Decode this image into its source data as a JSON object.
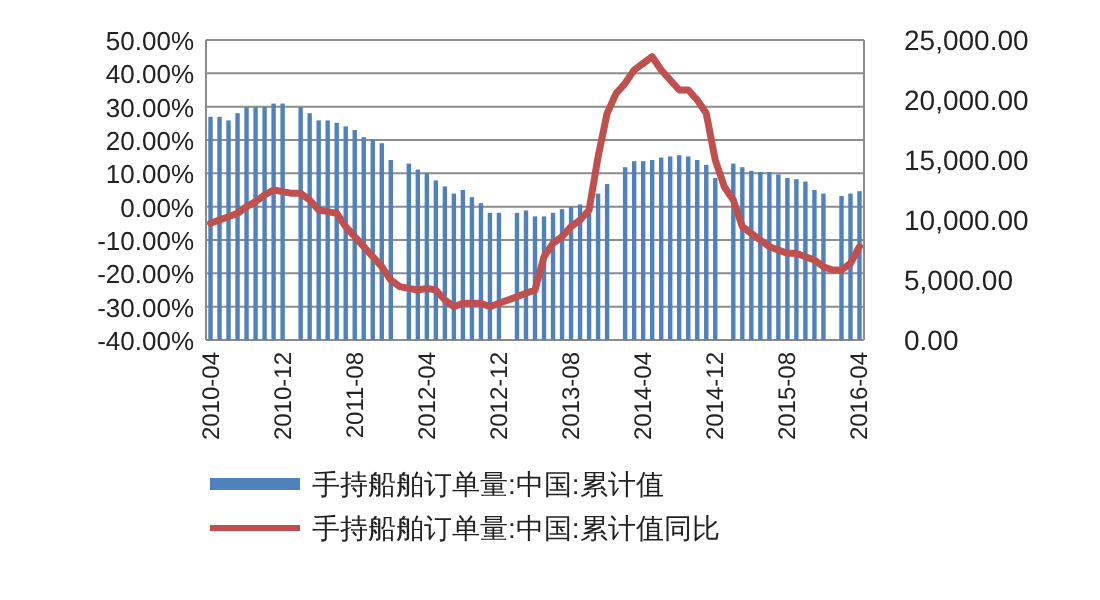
{
  "chart_data": {
    "type": "bar",
    "categories": [
      "2010-04",
      null,
      null,
      null,
      null,
      null,
      null,
      null,
      "2010-12",
      null,
      null,
      null,
      null,
      null,
      null,
      null,
      "2011-08",
      null,
      null,
      null,
      null,
      null,
      null,
      null,
      "2012-04",
      null,
      null,
      null,
      null,
      null,
      null,
      null,
      "2012-12",
      null,
      null,
      null,
      null,
      null,
      null,
      null,
      "2013-08",
      null,
      null,
      null,
      null,
      null,
      null,
      null,
      "2014-04",
      null,
      null,
      null,
      null,
      null,
      null,
      null,
      "2014-12",
      null,
      null,
      null,
      null,
      null,
      null,
      null,
      "2015-08",
      null,
      null,
      null,
      null,
      null,
      null,
      null,
      "2016-04"
    ],
    "series": [
      {
        "name": "手持船舶订单量:中国:累计值",
        "axis": "y2",
        "color": "#4f81bd",
        "values": [
          18600,
          18600,
          18300,
          18900,
          19400,
          19400,
          19400,
          19700,
          19700,
          null,
          19400,
          18900,
          18300,
          18300,
          18100,
          17800,
          17500,
          16900,
          16700,
          16400,
          15000,
          null,
          14700,
          14200,
          13900,
          13300,
          12800,
          12200,
          12500,
          11900,
          11400,
          10600,
          10600,
          null,
          10600,
          10800,
          10300,
          10300,
          10600,
          10900,
          11100,
          11300,
          11600,
          12200,
          13000,
          null,
          14400,
          14900,
          14900,
          15000,
          15200,
          15300,
          15400,
          15300,
          15000,
          14600,
          13500,
          null,
          14700,
          14400,
          14100,
          14000,
          14000,
          13800,
          13500,
          13400,
          13200,
          12500,
          12200,
          null,
          12000,
          12200,
          12400
        ]
      },
      {
        "name": "手持船舶订单量:中国:累计值同比",
        "type": "line",
        "color": "#c0504d",
        "values": [
          -5,
          -4,
          -3,
          -2,
          0,
          1.5,
          3.5,
          5,
          4.5,
          4,
          4,
          2,
          -1,
          -1.5,
          -2,
          -6,
          -9,
          -12,
          -15,
          -18,
          -22,
          -24,
          -24.5,
          -25,
          -24.5,
          -25,
          -28,
          -30,
          -29,
          -29,
          -29,
          -30,
          -29,
          -28,
          -27,
          -26,
          -25,
          -15,
          -11,
          -9,
          -6,
          -4,
          -1,
          15,
          28,
          34,
          37,
          41,
          43,
          45,
          41,
          38,
          35,
          35,
          32,
          28,
          14,
          6,
          2,
          -6,
          -8,
          -10,
          -12,
          -13,
          -14,
          -14,
          -15,
          -16,
          -18,
          -19,
          -19,
          -17,
          -12
        ]
      }
    ],
    "ylim": [
      -40,
      50
    ],
    "yticks": [
      {
        "value": -40,
        "label": "-40.00%"
      },
      {
        "value": -30,
        "label": "-30.00%"
      },
      {
        "value": -20,
        "label": "-20.00%"
      },
      {
        "value": -10,
        "label": "-10.00%"
      },
      {
        "value": 0,
        "label": "0.00%"
      },
      {
        "value": 10,
        "label": "10.00%"
      },
      {
        "value": 20,
        "label": "20.00%"
      },
      {
        "value": 30,
        "label": "30.00%"
      },
      {
        "value": 40,
        "label": "40.00%"
      },
      {
        "value": 50,
        "label": "50.00%"
      }
    ],
    "y2lim": [
      0,
      25000
    ],
    "y2ticks": [
      {
        "value": 0,
        "label": "0.00"
      },
      {
        "value": 5000,
        "label": "5,000.00"
      },
      {
        "value": 10000,
        "label": "10,000.00"
      },
      {
        "value": 15000,
        "label": "15,000.00"
      },
      {
        "value": 20000,
        "label": "20,000.00"
      },
      {
        "value": 25000,
        "label": "25,000.00"
      }
    ],
    "grid": "y",
    "legend": "bottom",
    "marker": "none",
    "line_style": "solid"
  }
}
